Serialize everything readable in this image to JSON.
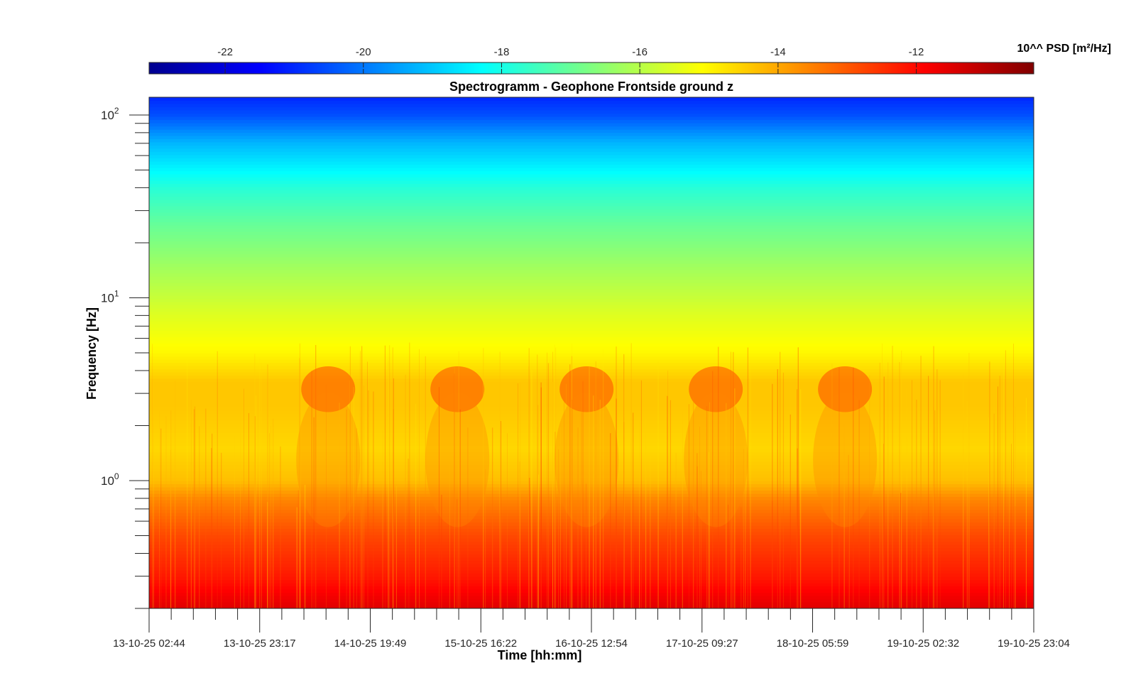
{
  "chart_data": {
    "type": "heatmap",
    "title": "Spectrogramm - Geophone Frontside ground z",
    "xlabel": "Time [hh:mm]",
    "ylabel": "Frequency [Hz]",
    "yscale": "log",
    "ylim": [
      0.2,
      125
    ],
    "xlim": [
      "13-10-25 02:44",
      "19-10-25 23:04"
    ],
    "x_ticks": [
      "13-10-25 02:44",
      "13-10-25 23:17",
      "14-10-25 19:49",
      "15-10-25 16:22",
      "16-10-25 12:54",
      "17-10-25 09:27",
      "18-10-25 05:59",
      "19-10-25 02:32",
      "19-10-25 23:04"
    ],
    "y_ticks": [
      {
        "base": "10",
        "exp": "0",
        "value": 1
      },
      {
        "base": "10",
        "exp": "1",
        "value": 10
      },
      {
        "base": "10",
        "exp": "2",
        "value": 100
      }
    ],
    "colorbar": {
      "label": "10^^ PSD [m²/Hz]",
      "location": "top",
      "colormap": "jet",
      "range": [
        -23.1,
        -10.3
      ],
      "ticks": [
        -22,
        -20,
        -18,
        -16,
        -14,
        -12
      ]
    },
    "spectral_profile": {
      "freq_hz": [
        0.2,
        0.3,
        0.5,
        0.8,
        1.0,
        1.5,
        2.5,
        3.5,
        5.0,
        8.0,
        15,
        25,
        40,
        70,
        100,
        125
      ],
      "log10_psd": [
        -11.5,
        -12.2,
        -12.8,
        -13.6,
        -14.3,
        -14.6,
        -14.4,
        -14.4,
        -15.0,
        -15.5,
        -16.3,
        -17.0,
        -17.8,
        -19.2,
        -20.5,
        -21.0
      ]
    },
    "daytime_activity": {
      "band_hz": [
        2.5,
        4.0
      ],
      "centers": [
        "14-10-25 12:00",
        "15-10-25 12:00",
        "16-10-25 12:00",
        "17-10-25 12:00",
        "18-10-25 12:00"
      ],
      "peak_log10_psd": -12.8
    },
    "grid": false,
    "legend": "none"
  }
}
